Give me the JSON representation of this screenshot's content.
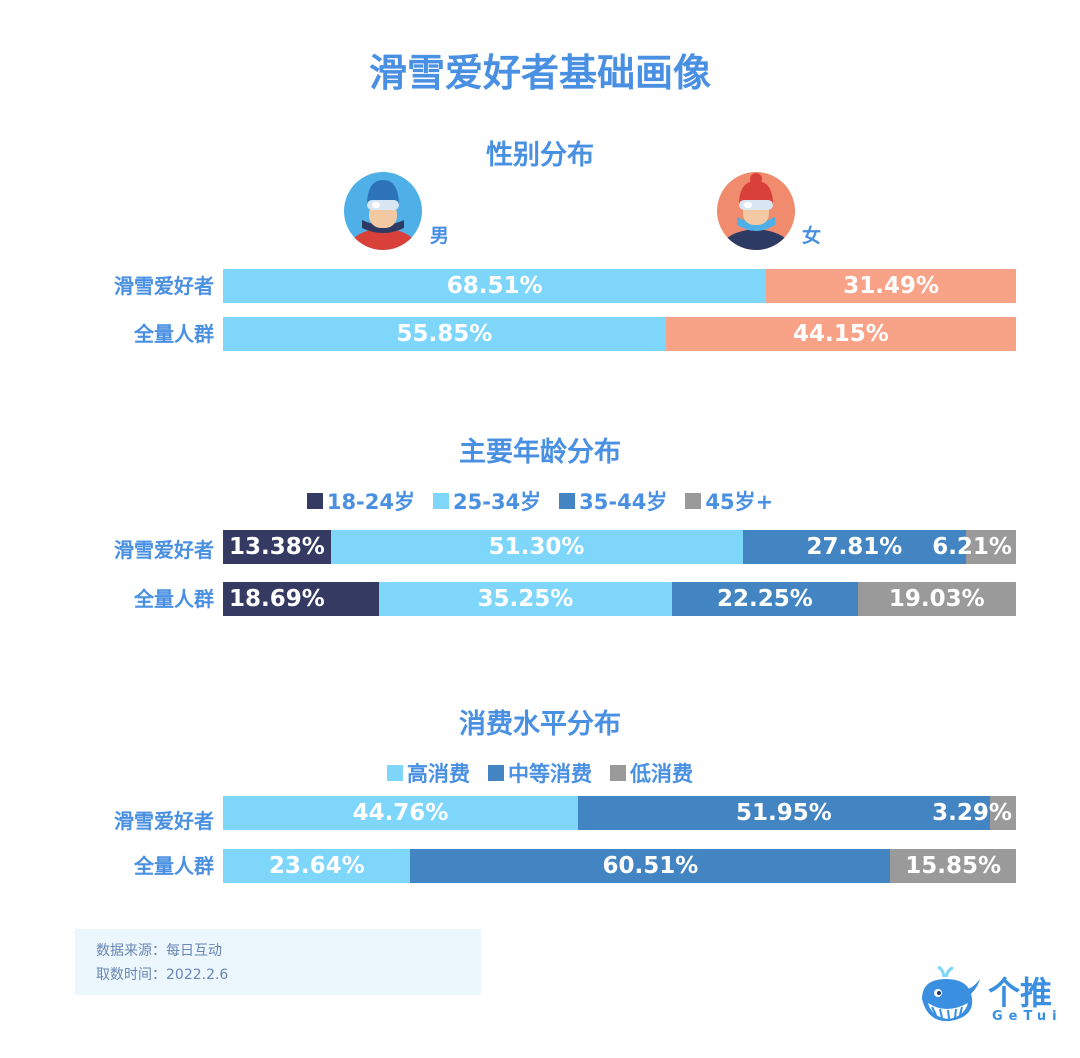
{
  "title": "滑雪爱好者基础画像",
  "colors": {
    "accent": "#4a90e2",
    "light_blue": "#7fd6fb",
    "salmon": "#f8a387",
    "navy": "#353a63",
    "mid_blue": "#4385c3",
    "gray": "#9a9a9a"
  },
  "gender": {
    "title": "性别分布",
    "male_label": "男",
    "female_label": "女",
    "male_icon": "male-skier-icon",
    "female_icon": "female-skier-icon"
  },
  "age": {
    "title": "主要年龄分布",
    "legend": [
      "18-24岁",
      "25-34岁",
      "35-44岁",
      "45岁+"
    ]
  },
  "spending": {
    "title": "消费水平分布",
    "legend": [
      "高消费",
      "中等消费",
      "低消费"
    ]
  },
  "row_labels": {
    "skiers": "滑雪爱好者",
    "all": "全量人群"
  },
  "chart_data": [
    {
      "type": "bar",
      "stacked": true,
      "orientation": "horizontal",
      "title": "性别分布",
      "categories": [
        "滑雪爱好者",
        "全量人群"
      ],
      "series": [
        {
          "name": "男",
          "values": [
            68.51,
            55.85
          ],
          "labels": [
            "68.51%",
            "55.85%"
          ],
          "color": "#7fd6fb"
        },
        {
          "name": "女",
          "values": [
            31.49,
            44.15
          ],
          "labels": [
            "31.49%",
            "44.15%"
          ],
          "color": "#f8a387"
        }
      ]
    },
    {
      "type": "bar",
      "stacked": true,
      "orientation": "horizontal",
      "title": "主要年龄分布",
      "categories": [
        "滑雪爱好者",
        "全量人群"
      ],
      "series": [
        {
          "name": "18-24岁",
          "values": [
            13.38,
            18.69
          ],
          "labels": [
            "13.38%",
            "18.69%"
          ],
          "color": "#353a63"
        },
        {
          "name": "25-34岁",
          "values": [
            51.3,
            35.25
          ],
          "labels": [
            "51.30%",
            "35.25%"
          ],
          "color": "#7fd6fb"
        },
        {
          "name": "35-44岁",
          "values": [
            27.81,
            22.25
          ],
          "labels": [
            "27.81%",
            "22.25%"
          ],
          "color": "#4385c3"
        },
        {
          "name": "45岁+",
          "values": [
            6.21,
            19.03
          ],
          "labels": [
            "6.21%",
            "19.03%"
          ],
          "color": "#9a9a9a"
        }
      ]
    },
    {
      "type": "bar",
      "stacked": true,
      "orientation": "horizontal",
      "title": "消费水平分布",
      "categories": [
        "滑雪爱好者",
        "全量人群"
      ],
      "series": [
        {
          "name": "高消费",
          "values": [
            44.76,
            23.64
          ],
          "labels": [
            "44.76%",
            "23.64%"
          ],
          "color": "#7fd6fb"
        },
        {
          "name": "中等消费",
          "values": [
            51.95,
            60.51
          ],
          "labels": [
            "51.95%",
            "60.51%"
          ],
          "color": "#4385c3"
        },
        {
          "name": "低消费",
          "values": [
            3.29,
            15.85
          ],
          "labels": [
            "3.29%",
            "15.85%"
          ],
          "color": "#9a9a9a"
        }
      ]
    }
  ],
  "source": {
    "line1": "数据来源：每日互动",
    "line2": "取数时间：2022.2.6"
  },
  "logo": {
    "text": "个推",
    "sub": "GeTui",
    "icon": "whale-logo-icon"
  }
}
